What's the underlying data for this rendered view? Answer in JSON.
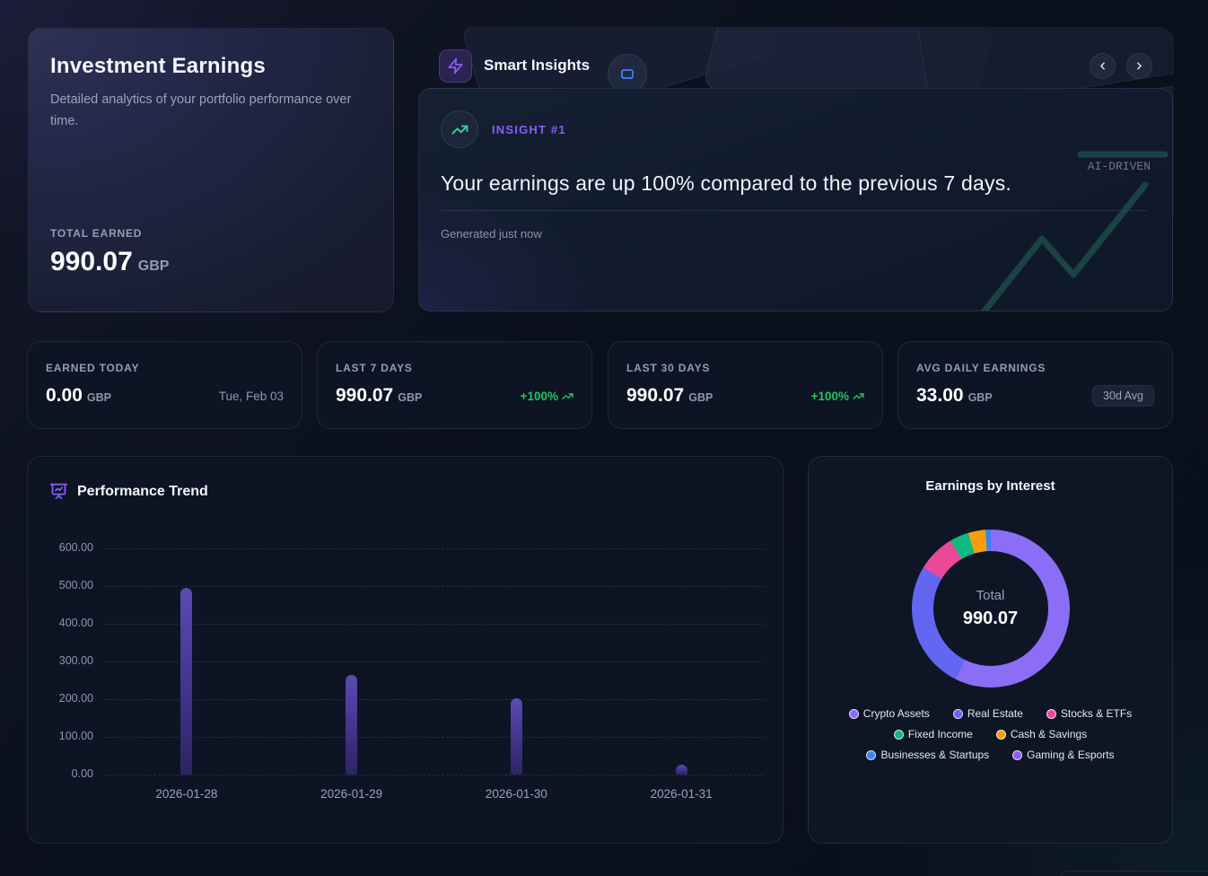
{
  "overview": {
    "title": "Investment Earnings",
    "subtitle": "Detailed analytics of your portfolio performance over time.",
    "total_label": "TOTAL EARNED",
    "total_value": "990.07",
    "currency": "GBP"
  },
  "insights": {
    "header": "Smart Insights",
    "header_icon": "zap-icon",
    "nav": {
      "prev_icon": "chevron-left-icon",
      "next_icon": "chevron-right-icon"
    },
    "badge_label": "INSIGHT #1",
    "badge_icon": "trending-up-icon",
    "headline": "Your earnings are up 100% compared to the previous 7 days.",
    "generated": "Generated just now",
    "watermark": "AI-DRIVEN"
  },
  "stats": [
    {
      "label": "EARNED TODAY",
      "value": "0.00",
      "currency": "GBP",
      "meta": "Tue, Feb 03"
    },
    {
      "label": "LAST 7 DAYS",
      "value": "990.07",
      "currency": "GBP",
      "meta": "+100%"
    },
    {
      "label": "LAST 30 DAYS",
      "value": "990.07",
      "currency": "GBP",
      "meta": "+100%"
    },
    {
      "label": "AVG DAILY EARNINGS",
      "value": "33.00",
      "currency": "GBP",
      "meta": "30d Avg"
    }
  ],
  "colors": {
    "accent_purple": "#8b5cf6",
    "positive_green": "#22c55e",
    "bar_gradient_top": "#5b4cb2",
    "bar_gradient_bottom": "#2d2462",
    "deco_teal": "#1e4b4a"
  },
  "chart_data": [
    {
      "type": "bar",
      "title": "Performance Trend",
      "title_icon": "presentation-chart-icon",
      "categories": [
        "2026-01-28",
        "2026-01-29",
        "2026-01-30",
        "2026-01-31"
      ],
      "values": [
        495,
        265,
        203,
        27
      ],
      "ylim": [
        0,
        600
      ],
      "yticks": [
        "600.00",
        "500.00",
        "400.00",
        "300.00",
        "200.00",
        "100.00",
        "0.00"
      ],
      "grid": "horizontal-dashed",
      "legend": "none"
    },
    {
      "type": "pie",
      "subtype": "donut",
      "title": "Earnings by Interest",
      "center_label": "Total",
      "center_value": "990.07",
      "legend_position": "bottom",
      "segments": [
        {
          "label": "Crypto Assets",
          "color": "#8b6ef5",
          "value": 568,
          "percent": 57.4
        },
        {
          "label": "Real Estate",
          "color": "#6366f1",
          "value": 260,
          "percent": 26.3
        },
        {
          "label": "Stocks & ETFs",
          "color": "#ec4899",
          "value": 77,
          "percent": 7.8
        },
        {
          "label": "Fixed Income",
          "color": "#10b981",
          "value": 39,
          "percent": 3.9
        },
        {
          "label": "Cash & Savings",
          "color": "#f59e0b",
          "value": 35,
          "percent": 3.5
        },
        {
          "label": "Businesses & Startups",
          "color": "#3b82f6",
          "value": 11,
          "percent": 1.1
        },
        {
          "label": "Gaming & Esports",
          "color": "#8b5cf6",
          "value": 0,
          "percent": 0
        }
      ]
    }
  ]
}
